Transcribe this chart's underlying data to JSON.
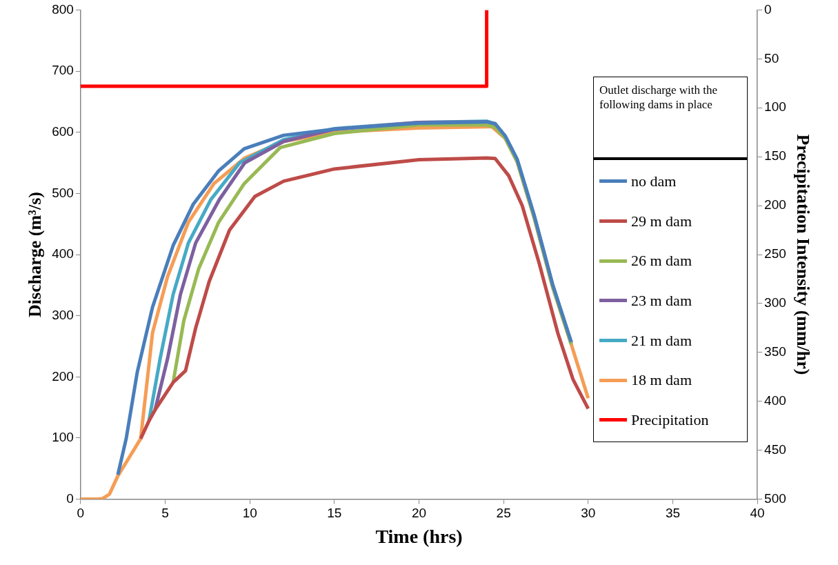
{
  "chart_data": {
    "type": "line",
    "xlabel": "Time (hrs)",
    "ylabel": "Discharge (m³/s)",
    "y2label": "Precipitation Intensity (mm/hr)",
    "legend_title": "Outlet discharge with the following dams in place",
    "legend": "right",
    "grid": false,
    "marker": "none",
    "xlim": [
      0,
      40
    ],
    "xticks": [
      0,
      5,
      10,
      15,
      20,
      25,
      30,
      35,
      40
    ],
    "ylim": [
      0,
      800
    ],
    "yticks": [
      0,
      100,
      200,
      300,
      400,
      500,
      600,
      700,
      800
    ],
    "y2lim": [
      500,
      0
    ],
    "y2ticks": [
      0,
      50,
      100,
      150,
      200,
      250,
      300,
      350,
      400,
      450,
      500
    ],
    "series": [
      {
        "name": "no dam",
        "color": "#4a7ebb",
        "x": [
          2.2,
          2.7,
          3.35,
          4.25,
          5.47,
          6.65,
          8.16,
          9.67,
          12,
          15,
          20,
          24,
          24.5,
          25.1,
          25.8,
          26.8,
          27.9,
          29
        ],
        "values": [
          40,
          100,
          208,
          314,
          415,
          482,
          537,
          573,
          595,
          605,
          615,
          617,
          614,
          594,
          556,
          465,
          351,
          257
        ]
      },
      {
        "name": "29 m dam",
        "color": "#be4b48",
        "x": [
          3.55,
          4.04,
          4.4,
          5.47,
          6.2,
          6.8,
          7.6,
          8.8,
          10.3,
          12,
          15,
          20,
          24,
          24.5,
          25.3,
          26.1,
          27.1,
          28.2,
          29.1,
          30
        ],
        "values": [
          99,
          128,
          146,
          191,
          210,
          280,
          356,
          440,
          495,
          520,
          540,
          555,
          558,
          557,
          529,
          480,
          386,
          272,
          196,
          148
        ]
      },
      {
        "name": "26 m dam",
        "color": "#98b954",
        "x": [
          5.47,
          6.1,
          6.98,
          8.16,
          9.67,
          11.8,
          15,
          20,
          24,
          24.5,
          25.1,
          25.8,
          26.8,
          27.9,
          29
        ],
        "values": [
          191,
          292,
          377,
          453,
          516,
          575,
          598,
          612,
          612,
          608,
          590,
          552,
          461,
          347,
          253
        ]
      },
      {
        "name": "23 m dam",
        "color": "#7d60a0",
        "x": [
          4.4,
          5.14,
          5.9,
          6.8,
          8.2,
          9.7,
          12,
          15,
          20,
          24,
          24.5,
          25.1,
          25.8,
          26.8,
          27.9,
          29
        ],
        "values": [
          146,
          230,
          335,
          419,
          490,
          550,
          585,
          605,
          616,
          617,
          613,
          592,
          554,
          463,
          349,
          255
        ]
      },
      {
        "name": "21 m dam",
        "color": "#46aac5",
        "x": [
          4.04,
          4.7,
          5.47,
          6.37,
          7.7,
          9.4,
          12,
          15,
          20,
          24,
          24.5,
          25.1,
          25.8,
          26.8,
          27.9,
          29
        ],
        "values": [
          128,
          230,
          335,
          419,
          490,
          550,
          588,
          606,
          616,
          618,
          614,
          593,
          555,
          464,
          350,
          256
        ]
      },
      {
        "name": "18 m dam",
        "color": "#f59d56",
        "x": [
          0,
          1,
          1.3,
          1.7,
          2.2,
          2.8,
          3.55,
          4.25,
          5.14,
          6.37,
          7.88,
          9.7,
          12,
          15,
          20,
          24,
          24.3,
          25.1,
          25.8,
          26.8,
          27.9,
          29,
          30
        ],
        "values": [
          0,
          0,
          1,
          8,
          38,
          65,
          99,
          272,
          364,
          453,
          516,
          558,
          585,
          600,
          607,
          609,
          609,
          590,
          552,
          461,
          347,
          253,
          165
        ]
      },
      {
        "name": "Precipitation",
        "color": "#ff0000",
        "type": "step",
        "axis": "y2",
        "x": [
          0,
          24,
          24
        ],
        "values": [
          78,
          78,
          0
        ]
      }
    ]
  }
}
